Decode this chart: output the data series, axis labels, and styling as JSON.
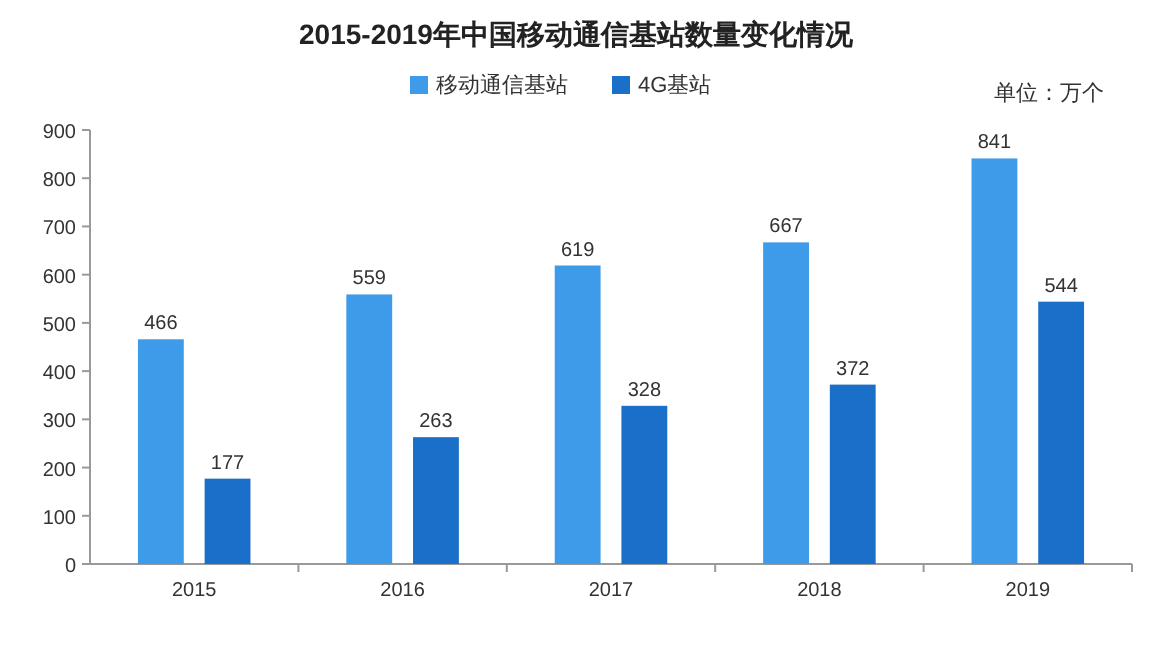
{
  "chart_data": {
    "type": "bar",
    "title": "2015-2019年中国移动通信基站数量变化情况",
    "categories": [
      "2015",
      "2016",
      "2017",
      "2018",
      "2019"
    ],
    "series": [
      {
        "name": "移动通信基站",
        "color": "#3d9be9",
        "values": [
          466,
          559,
          619,
          667,
          841
        ]
      },
      {
        "name": "4G基站",
        "color": "#1a6fc8",
        "values": [
          177,
          263,
          328,
          372,
          544
        ]
      }
    ],
    "ylim": [
      0,
      900
    ],
    "yticks": [
      0,
      100,
      200,
      300,
      400,
      500,
      600,
      700,
      800,
      900
    ],
    "data_labels": true,
    "legend": "top",
    "annotations": [
      "单位：万个"
    ]
  }
}
